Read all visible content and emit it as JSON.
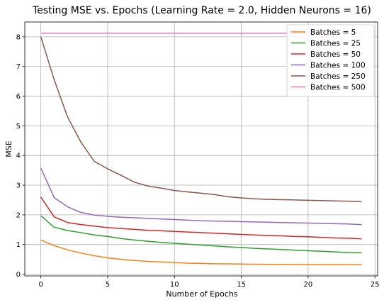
{
  "chart_data": {
    "type": "line",
    "title": "Testing MSE vs. Epochs (Learning Rate = 2.0, Hidden Neurons = 16)",
    "xlabel": "Number of Epochs",
    "ylabel": "MSE",
    "xlim": [
      -1.2,
      25.2
    ],
    "ylim": [
      -0.06,
      8.5
    ],
    "xticks": [
      0,
      5,
      10,
      15,
      20,
      25
    ],
    "yticks": [
      0,
      1,
      2,
      3,
      4,
      5,
      6,
      7,
      8
    ],
    "grid": true,
    "legend_position": "top-right",
    "x": [
      0,
      1,
      2,
      3,
      4,
      5,
      6,
      7,
      8,
      9,
      10,
      11,
      12,
      13,
      14,
      15,
      16,
      17,
      18,
      19,
      20,
      21,
      22,
      23,
      24
    ],
    "series": [
      {
        "name": "Batches = 5",
        "color": "#ff7f0e",
        "values": [
          1.15,
          0.96,
          0.82,
          0.71,
          0.62,
          0.55,
          0.5,
          0.46,
          0.43,
          0.41,
          0.39,
          0.37,
          0.36,
          0.35,
          0.345,
          0.34,
          0.335,
          0.33,
          0.33,
          0.325,
          0.325,
          0.32,
          0.32,
          0.32,
          0.32
        ]
      },
      {
        "name": "Batches = 25",
        "color": "#2ca02c",
        "values": [
          1.97,
          1.58,
          1.47,
          1.4,
          1.32,
          1.27,
          1.2,
          1.15,
          1.11,
          1.07,
          1.04,
          1.01,
          0.98,
          0.95,
          0.92,
          0.9,
          0.87,
          0.85,
          0.83,
          0.81,
          0.79,
          0.77,
          0.75,
          0.73,
          0.72
        ]
      },
      {
        "name": "Batches = 50",
        "color": "#d62728",
        "values": [
          2.6,
          1.93,
          1.74,
          1.67,
          1.62,
          1.57,
          1.54,
          1.51,
          1.48,
          1.46,
          1.44,
          1.42,
          1.4,
          1.38,
          1.36,
          1.34,
          1.32,
          1.3,
          1.29,
          1.27,
          1.26,
          1.24,
          1.22,
          1.21,
          1.19
        ]
      },
      {
        "name": "Batches = 100",
        "color": "#9467bd",
        "values": [
          3.58,
          2.58,
          2.27,
          2.08,
          1.99,
          1.95,
          1.92,
          1.9,
          1.88,
          1.86,
          1.84,
          1.82,
          1.8,
          1.79,
          1.78,
          1.77,
          1.76,
          1.75,
          1.74,
          1.73,
          1.72,
          1.71,
          1.7,
          1.69,
          1.67
        ]
      },
      {
        "name": "Batches = 250",
        "color": "#8c564b",
        "values": [
          8.0,
          6.55,
          5.3,
          4.45,
          3.8,
          3.55,
          3.33,
          3.1,
          2.97,
          2.9,
          2.82,
          2.77,
          2.73,
          2.68,
          2.61,
          2.57,
          2.54,
          2.52,
          2.51,
          2.5,
          2.49,
          2.48,
          2.47,
          2.46,
          2.44
        ]
      },
      {
        "name": "Batches = 500",
        "color": "#e377c2",
        "values": [
          8.12,
          8.12,
          8.12,
          8.12,
          8.12,
          8.12,
          8.12,
          8.12,
          8.12,
          8.12,
          8.12,
          8.12,
          8.12,
          8.12,
          8.12,
          8.12,
          8.12,
          8.12,
          8.12,
          8.12,
          8.12,
          8.12,
          8.12,
          8.12,
          8.12
        ]
      }
    ]
  }
}
